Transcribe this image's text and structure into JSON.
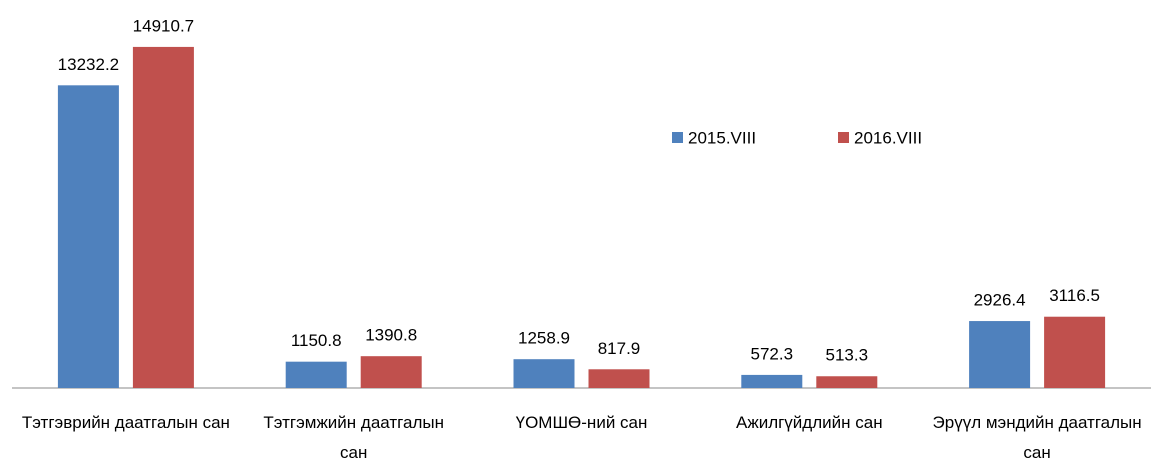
{
  "chart_data": {
    "type": "bar",
    "categories": [
      "Тэтгэврийн даатгалын сан",
      "Тэтгэмжийн даатгалын сан",
      "ҮОМШӨ-ний сан",
      "Ажилгүйдлийн сан",
      "Эрүүл мэндийн даатгалын сан"
    ],
    "series": [
      {
        "name": "2015.VIII",
        "color": "#4f81bd",
        "values": [
          13232.2,
          1150.8,
          1258.9,
          572.3,
          2926.4
        ]
      },
      {
        "name": "2016.VIII",
        "color": "#c0504d",
        "values": [
          14910.7,
          1390.8,
          817.9,
          513.3,
          3116.5
        ]
      }
    ],
    "ylim": [
      0,
      16000
    ],
    "legend": "top-right"
  }
}
